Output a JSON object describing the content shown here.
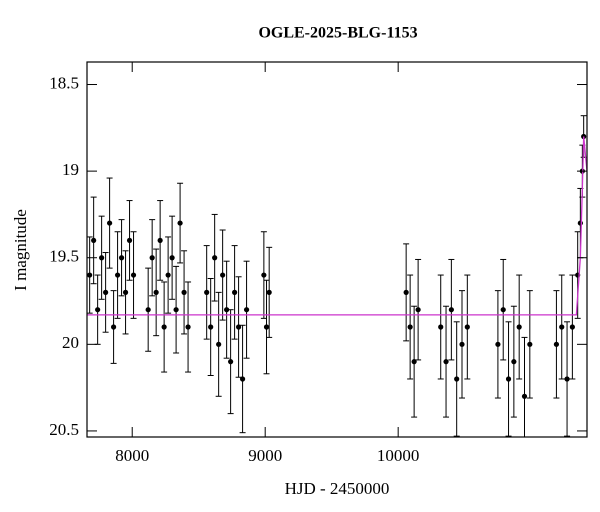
{
  "chart_data": {
    "type": "scatter",
    "title": "OGLE-2025-BLG-1153",
    "xlabel": "HJD - 2450000",
    "ylabel": "I magnitude",
    "xlim": [
      7660,
      11420
    ],
    "ylim": [
      18.37,
      20.535
    ],
    "y_inverted": true,
    "xticks": [
      8000,
      9000,
      10000
    ],
    "yticks": [
      18.5,
      19,
      19.5,
      20,
      20.5
    ],
    "series": [
      {
        "color": "#000000",
        "x": [
          7680,
          7710,
          7740,
          7770,
          7800,
          7830,
          7860,
          7890,
          7920,
          7950,
          7980,
          8010,
          8120,
          8150,
          8180,
          8210,
          8240,
          8270,
          8300,
          8330,
          8360,
          8390,
          8420,
          8560,
          8590,
          8620,
          8650,
          8680,
          8710,
          8740,
          8770,
          8800,
          8830,
          8860,
          8990,
          9010,
          9030,
          10060,
          10090,
          10120,
          10150,
          10320,
          10360,
          10400,
          10440,
          10480,
          10520,
          10750,
          10790,
          10830,
          10870,
          10910,
          10950,
          10990,
          11190,
          11230,
          11270,
          11310,
          11350,
          11370,
          11385,
          11395
        ],
        "values": [
          19.6,
          19.4,
          19.8,
          19.5,
          19.7,
          19.3,
          19.9,
          19.6,
          19.5,
          19.7,
          19.4,
          19.6,
          19.8,
          19.5,
          19.7,
          19.4,
          19.9,
          19.6,
          19.5,
          19.8,
          19.3,
          19.7,
          19.9,
          19.7,
          19.9,
          19.5,
          20.0,
          19.6,
          19.8,
          20.1,
          19.7,
          19.9,
          20.2,
          19.8,
          19.6,
          19.9,
          19.7,
          19.7,
          19.9,
          20.1,
          19.8,
          19.9,
          20.1,
          19.8,
          20.2,
          20.0,
          19.9,
          20.0,
          19.8,
          20.2,
          20.1,
          19.9,
          20.3,
          20.0,
          20.0,
          19.9,
          20.2,
          19.9,
          19.6,
          19.3,
          19.0,
          18.8
        ],
        "errors": [
          0.22,
          0.25,
          0.2,
          0.24,
          0.23,
          0.26,
          0.21,
          0.25,
          0.22,
          0.24,
          0.23,
          0.25,
          0.24,
          0.22,
          0.25,
          0.23,
          0.26,
          0.22,
          0.24,
          0.25,
          0.23,
          0.24,
          0.26,
          0.27,
          0.28,
          0.25,
          0.3,
          0.26,
          0.28,
          0.3,
          0.27,
          0.29,
          0.31,
          0.28,
          0.25,
          0.27,
          0.26,
          0.28,
          0.3,
          0.32,
          0.29,
          0.3,
          0.32,
          0.29,
          0.33,
          0.31,
          0.3,
          0.31,
          0.29,
          0.33,
          0.32,
          0.3,
          0.34,
          0.31,
          0.31,
          0.3,
          0.33,
          0.3,
          0.25,
          0.2,
          0.15,
          0.12
        ]
      }
    ],
    "model": {
      "color": "#cc33cc",
      "x": [
        7660,
        11340,
        11370,
        11385,
        11395,
        11420
      ],
      "values": [
        19.83,
        19.83,
        19.5,
        19.1,
        18.8,
        19.0
      ]
    }
  }
}
